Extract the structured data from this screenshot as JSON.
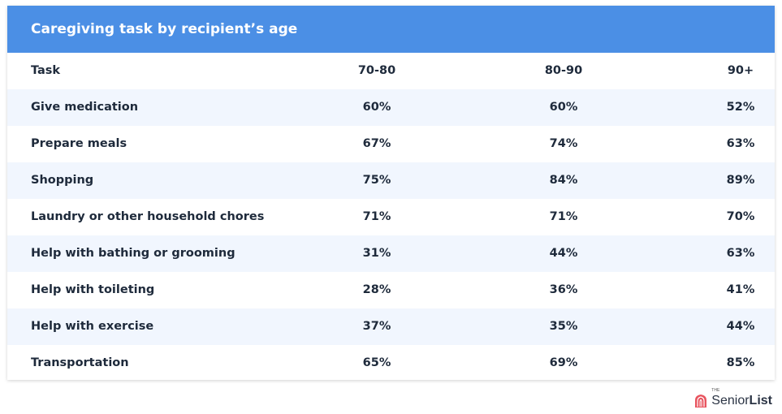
{
  "chart_data": {
    "type": "table",
    "title": "Caregiving task by recipient’s age",
    "columns": [
      "Task",
      "70-80",
      "80-90",
      "90+"
    ],
    "rows": [
      {
        "task": "Give medication",
        "values": [
          "60%",
          "60%",
          "52%"
        ]
      },
      {
        "task": "Prepare meals",
        "values": [
          "67%",
          "74%",
          "63%"
        ]
      },
      {
        "task": "Shopping",
        "values": [
          "75%",
          "84%",
          "89%"
        ]
      },
      {
        "task": "Laundry or other household chores",
        "values": [
          "71%",
          "71%",
          "70%"
        ]
      },
      {
        "task": "Help with bathing or grooming",
        "values": [
          "31%",
          "44%",
          "63%"
        ]
      },
      {
        "task": "Help with toileting",
        "values": [
          "28%",
          "36%",
          "41%"
        ]
      },
      {
        "task": "Help with exercise",
        "values": [
          "37%",
          "35%",
          "44%"
        ]
      },
      {
        "task": "Transportation",
        "values": [
          "65%",
          "69%",
          "85%"
        ]
      }
    ]
  },
  "logo": {
    "small": "THE",
    "part1": "Senior",
    "part2": "List"
  },
  "colors": {
    "header": "#4b8fe5",
    "row_alt": "#f1f6fe",
    "logo_mark": "#e8545f"
  }
}
